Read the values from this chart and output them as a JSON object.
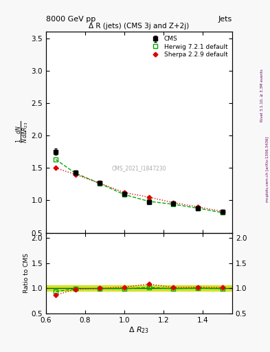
{
  "title": "Δ R (jets) (CMS 3j and Z+2j)",
  "header_left": "8000 GeV pp",
  "header_right": "Jets",
  "ylabel_main": "$\\frac{1}{N}\\frac{dN}{d\\Delta R_{23}}$",
  "ylabel_ratio": "Ratio to CMS",
  "xlabel": "$\\Delta\\ R_{23}$",
  "watermark": "CMS_2021_I1847230",
  "right_label": "Rivet 3.1.10, ≥ 3.3M events",
  "right_label2": "mcplots.cern.ch [arXiv:1306.3436]",
  "cms_x": [
    0.65,
    0.75,
    0.875,
    1.0,
    1.125,
    1.25,
    1.375,
    1.5
  ],
  "cms_y": [
    1.75,
    1.43,
    1.27,
    1.1,
    0.97,
    0.95,
    0.88,
    0.82
  ],
  "cms_yerr": [
    0.05,
    0.03,
    0.02,
    0.02,
    0.02,
    0.02,
    0.02,
    0.02
  ],
  "herwig_x": [
    0.65,
    0.75,
    0.875,
    1.0,
    1.125,
    1.25,
    1.375,
    1.5
  ],
  "herwig_y": [
    1.63,
    1.42,
    1.26,
    1.09,
    0.985,
    0.94,
    0.88,
    0.81
  ],
  "sherpa_x": [
    0.65,
    0.75,
    0.875,
    1.0,
    1.125,
    1.25,
    1.375,
    1.5
  ],
  "sherpa_y": [
    1.5,
    1.4,
    1.265,
    1.12,
    1.05,
    0.965,
    0.9,
    0.83
  ],
  "ratio_herwig": [
    0.93,
    0.99,
    0.99,
    0.99,
    1.015,
    0.99,
    1.0,
    0.99
  ],
  "ratio_sherpa": [
    0.86,
    0.98,
    0.995,
    1.02,
    1.08,
    1.015,
    1.02,
    1.01
  ],
  "cms_color": "#000000",
  "herwig_color": "#00aa00",
  "sherpa_color": "#dd0000",
  "band_color": "#ccdd00",
  "xlim": [
    0.6,
    1.55
  ],
  "ylim_main": [
    0.5,
    3.6
  ],
  "ylim_ratio": [
    0.5,
    2.1
  ],
  "yticks_main": [
    0.5,
    1.0,
    1.5,
    2.0,
    2.5,
    3.0,
    3.5
  ],
  "yticks_ratio": [
    0.5,
    1.0,
    1.5,
    2.0
  ],
  "bg_color": "#f8f8f8"
}
